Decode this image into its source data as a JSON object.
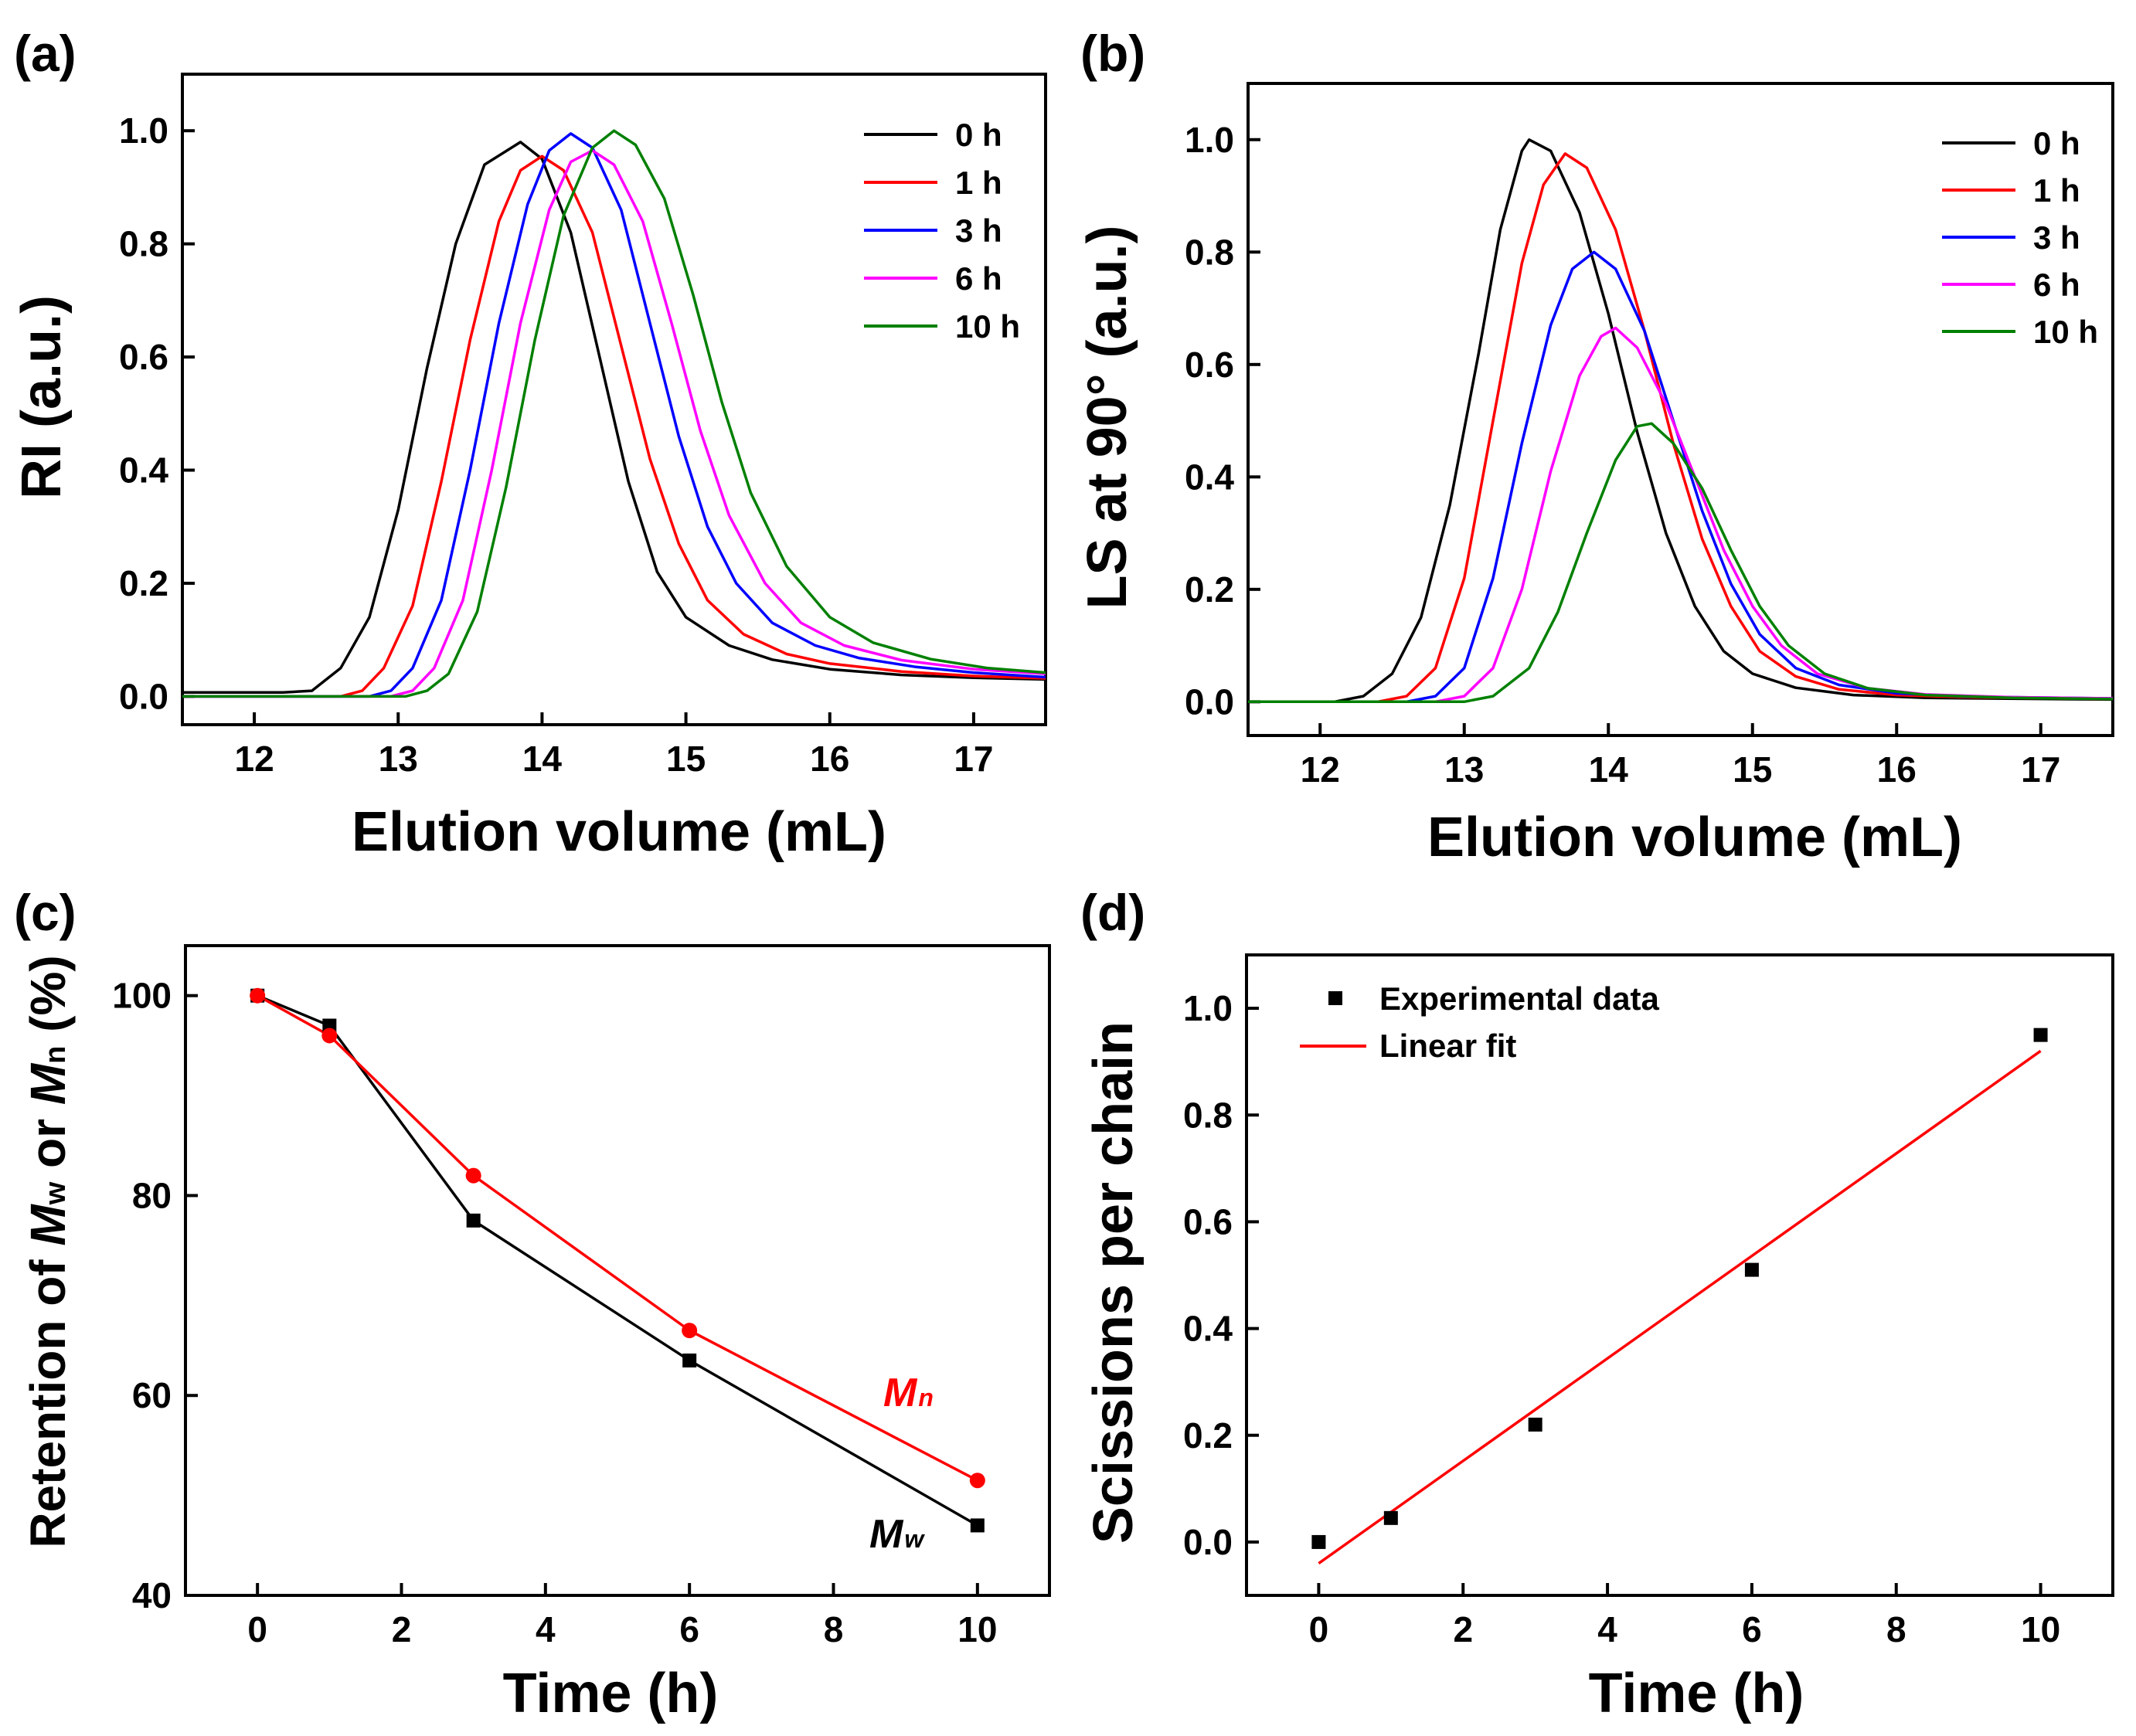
{
  "chart_data": [
    {
      "id": "a",
      "panel_label": "(a)",
      "type": "line",
      "xlabel": "Elution volume (mL)",
      "ylabel": "RI (a.u.)",
      "xlim": [
        11.5,
        17.5
      ],
      "ylim": [
        -0.05,
        1.1
      ],
      "xticks": [
        12,
        13,
        14,
        15,
        16,
        17
      ],
      "yticks": [
        0.0,
        0.2,
        0.4,
        0.6,
        0.8,
        1.0
      ],
      "xtick_labels": [
        "12",
        "13",
        "14",
        "15",
        "16",
        "17"
      ],
      "ytick_labels": [
        "0.0",
        "0.2",
        "0.4",
        "0.6",
        "0.8",
        "1.0"
      ],
      "legend_position": "top-right",
      "series": [
        {
          "name": "0 h",
          "color": "#000000",
          "values": [
            [
              11.5,
              0.007
            ],
            [
              12.2,
              0.007
            ],
            [
              12.4,
              0.01
            ],
            [
              12.6,
              0.05
            ],
            [
              12.8,
              0.14
            ],
            [
              13.0,
              0.33
            ],
            [
              13.2,
              0.58
            ],
            [
              13.4,
              0.8
            ],
            [
              13.6,
              0.94
            ],
            [
              13.85,
              0.98
            ],
            [
              14.0,
              0.95
            ],
            [
              14.2,
              0.82
            ],
            [
              14.4,
              0.6
            ],
            [
              14.6,
              0.38
            ],
            [
              14.8,
              0.22
            ],
            [
              15.0,
              0.14
            ],
            [
              15.3,
              0.09
            ],
            [
              15.6,
              0.065
            ],
            [
              16.0,
              0.048
            ],
            [
              16.5,
              0.038
            ],
            [
              17.0,
              0.033
            ],
            [
              17.5,
              0.03
            ]
          ]
        },
        {
          "name": "1 h",
          "color": "#ff0000",
          "values": [
            [
              11.5,
              0.0
            ],
            [
              12.6,
              0.0
            ],
            [
              12.75,
              0.01
            ],
            [
              12.9,
              0.05
            ],
            [
              13.1,
              0.16
            ],
            [
              13.3,
              0.38
            ],
            [
              13.5,
              0.63
            ],
            [
              13.7,
              0.84
            ],
            [
              13.85,
              0.93
            ],
            [
              14.0,
              0.955
            ],
            [
              14.15,
              0.93
            ],
            [
              14.35,
              0.82
            ],
            [
              14.55,
              0.62
            ],
            [
              14.75,
              0.42
            ],
            [
              14.95,
              0.27
            ],
            [
              15.15,
              0.17
            ],
            [
              15.4,
              0.11
            ],
            [
              15.7,
              0.075
            ],
            [
              16.0,
              0.058
            ],
            [
              16.5,
              0.044
            ],
            [
              17.0,
              0.036
            ],
            [
              17.5,
              0.032
            ]
          ]
        },
        {
          "name": "3 h",
          "color": "#0000ff",
          "values": [
            [
              11.5,
              0.0
            ],
            [
              12.8,
              0.0
            ],
            [
              12.95,
              0.01
            ],
            [
              13.1,
              0.05
            ],
            [
              13.3,
              0.17
            ],
            [
              13.5,
              0.4
            ],
            [
              13.7,
              0.66
            ],
            [
              13.9,
              0.87
            ],
            [
              14.05,
              0.965
            ],
            [
              14.2,
              0.995
            ],
            [
              14.35,
              0.97
            ],
            [
              14.55,
              0.86
            ],
            [
              14.75,
              0.66
            ],
            [
              14.95,
              0.46
            ],
            [
              15.15,
              0.3
            ],
            [
              15.35,
              0.2
            ],
            [
              15.6,
              0.13
            ],
            [
              15.9,
              0.09
            ],
            [
              16.2,
              0.068
            ],
            [
              16.6,
              0.052
            ],
            [
              17.0,
              0.042
            ],
            [
              17.5,
              0.034
            ]
          ]
        },
        {
          "name": "6 h",
          "color": "#ff00ff",
          "values": [
            [
              11.5,
              0.0
            ],
            [
              12.95,
              0.0
            ],
            [
              13.1,
              0.01
            ],
            [
              13.25,
              0.05
            ],
            [
              13.45,
              0.17
            ],
            [
              13.65,
              0.4
            ],
            [
              13.85,
              0.66
            ],
            [
              14.05,
              0.86
            ],
            [
              14.2,
              0.945
            ],
            [
              14.35,
              0.965
            ],
            [
              14.5,
              0.94
            ],
            [
              14.7,
              0.84
            ],
            [
              14.9,
              0.66
            ],
            [
              15.1,
              0.47
            ],
            [
              15.3,
              0.32
            ],
            [
              15.55,
              0.2
            ],
            [
              15.8,
              0.13
            ],
            [
              16.1,
              0.09
            ],
            [
              16.5,
              0.064
            ],
            [
              17.0,
              0.048
            ],
            [
              17.5,
              0.04
            ]
          ]
        },
        {
          "name": "10 h",
          "color": "#008000",
          "values": [
            [
              11.5,
              0.0
            ],
            [
              13.05,
              0.0
            ],
            [
              13.2,
              0.01
            ],
            [
              13.35,
              0.04
            ],
            [
              13.55,
              0.15
            ],
            [
              13.75,
              0.37
            ],
            [
              13.95,
              0.63
            ],
            [
              14.15,
              0.85
            ],
            [
              14.35,
              0.97
            ],
            [
              14.5,
              1.0
            ],
            [
              14.65,
              0.975
            ],
            [
              14.85,
              0.88
            ],
            [
              15.05,
              0.71
            ],
            [
              15.25,
              0.52
            ],
            [
              15.45,
              0.36
            ],
            [
              15.7,
              0.23
            ],
            [
              16.0,
              0.14
            ],
            [
              16.3,
              0.095
            ],
            [
              16.7,
              0.066
            ],
            [
              17.1,
              0.05
            ],
            [
              17.5,
              0.042
            ]
          ]
        }
      ]
    },
    {
      "id": "b",
      "panel_label": "(b)",
      "type": "line",
      "xlabel": "Elution volume (mL)",
      "ylabel": "LS at 90° (a.u.)",
      "xlim": [
        11.5,
        17.5
      ],
      "ylim": [
        -0.06,
        1.1
      ],
      "xticks": [
        12,
        13,
        14,
        15,
        16,
        17
      ],
      "yticks": [
        0.0,
        0.2,
        0.4,
        0.6,
        0.8,
        1.0
      ],
      "xtick_labels": [
        "12",
        "13",
        "14",
        "15",
        "16",
        "17"
      ],
      "ytick_labels": [
        "0.0",
        "0.2",
        "0.4",
        "0.6",
        "0.8",
        "1.0"
      ],
      "legend_position": "top-right",
      "series": [
        {
          "name": "0 h",
          "color": "#000000",
          "values": [
            [
              11.5,
              0.0
            ],
            [
              12.1,
              0.0
            ],
            [
              12.3,
              0.01
            ],
            [
              12.5,
              0.05
            ],
            [
              12.7,
              0.15
            ],
            [
              12.9,
              0.35
            ],
            [
              13.1,
              0.62
            ],
            [
              13.25,
              0.84
            ],
            [
              13.4,
              0.98
            ],
            [
              13.45,
              1.0
            ],
            [
              13.6,
              0.98
            ],
            [
              13.8,
              0.87
            ],
            [
              14.0,
              0.69
            ],
            [
              14.2,
              0.48
            ],
            [
              14.4,
              0.3
            ],
            [
              14.6,
              0.17
            ],
            [
              14.8,
              0.09
            ],
            [
              15.0,
              0.05
            ],
            [
              15.3,
              0.025
            ],
            [
              15.7,
              0.012
            ],
            [
              16.2,
              0.007
            ],
            [
              17.5,
              0.004
            ]
          ]
        },
        {
          "name": "1 h",
          "color": "#ff0000",
          "values": [
            [
              11.5,
              0.0
            ],
            [
              12.4,
              0.0
            ],
            [
              12.6,
              0.01
            ],
            [
              12.8,
              0.06
            ],
            [
              13.0,
              0.22
            ],
            [
              13.2,
              0.5
            ],
            [
              13.4,
              0.78
            ],
            [
              13.55,
              0.92
            ],
            [
              13.7,
              0.975
            ],
            [
              13.85,
              0.95
            ],
            [
              14.05,
              0.84
            ],
            [
              14.25,
              0.66
            ],
            [
              14.45,
              0.46
            ],
            [
              14.65,
              0.29
            ],
            [
              14.85,
              0.17
            ],
            [
              15.05,
              0.09
            ],
            [
              15.3,
              0.045
            ],
            [
              15.6,
              0.022
            ],
            [
              16.0,
              0.012
            ],
            [
              16.5,
              0.008
            ],
            [
              17.5,
              0.005
            ]
          ]
        },
        {
          "name": "3 h",
          "color": "#0000ff",
          "values": [
            [
              11.5,
              0.0
            ],
            [
              12.6,
              0.0
            ],
            [
              12.8,
              0.01
            ],
            [
              13.0,
              0.06
            ],
            [
              13.2,
              0.22
            ],
            [
              13.4,
              0.46
            ],
            [
              13.6,
              0.67
            ],
            [
              13.75,
              0.77
            ],
            [
              13.9,
              0.8
            ],
            [
              14.05,
              0.77
            ],
            [
              14.25,
              0.66
            ],
            [
              14.45,
              0.5
            ],
            [
              14.65,
              0.34
            ],
            [
              14.85,
              0.21
            ],
            [
              15.05,
              0.12
            ],
            [
              15.3,
              0.06
            ],
            [
              15.6,
              0.03
            ],
            [
              16.0,
              0.015
            ],
            [
              16.5,
              0.009
            ],
            [
              17.5,
              0.006
            ]
          ]
        },
        {
          "name": "6 h",
          "color": "#ff00ff",
          "values": [
            [
              11.5,
              0.0
            ],
            [
              12.8,
              0.0
            ],
            [
              13.0,
              0.01
            ],
            [
              13.2,
              0.06
            ],
            [
              13.4,
              0.2
            ],
            [
              13.6,
              0.41
            ],
            [
              13.8,
              0.58
            ],
            [
              13.95,
              0.65
            ],
            [
              14.05,
              0.665
            ],
            [
              14.2,
              0.63
            ],
            [
              14.4,
              0.53
            ],
            [
              14.6,
              0.4
            ],
            [
              14.8,
              0.27
            ],
            [
              15.0,
              0.17
            ],
            [
              15.2,
              0.1
            ],
            [
              15.45,
              0.05
            ],
            [
              15.8,
              0.024
            ],
            [
              16.2,
              0.013
            ],
            [
              16.8,
              0.008
            ],
            [
              17.5,
              0.006
            ]
          ]
        },
        {
          "name": "10 h",
          "color": "#008000",
          "values": [
            [
              11.5,
              0.0
            ],
            [
              13.0,
              0.0
            ],
            [
              13.2,
              0.01
            ],
            [
              13.45,
              0.06
            ],
            [
              13.65,
              0.16
            ],
            [
              13.85,
              0.3
            ],
            [
              14.05,
              0.43
            ],
            [
              14.2,
              0.49
            ],
            [
              14.3,
              0.495
            ],
            [
              14.45,
              0.46
            ],
            [
              14.65,
              0.38
            ],
            [
              14.85,
              0.27
            ],
            [
              15.05,
              0.17
            ],
            [
              15.25,
              0.1
            ],
            [
              15.5,
              0.05
            ],
            [
              15.8,
              0.024
            ],
            [
              16.2,
              0.012
            ],
            [
              16.8,
              0.007
            ],
            [
              17.5,
              0.005
            ]
          ]
        }
      ]
    },
    {
      "id": "c",
      "panel_label": "(c)",
      "type": "line",
      "xlabel": "Time (h)",
      "ylabel_parts": [
        "Retention of ",
        "M",
        "w",
        " or ",
        "M",
        "n",
        " (%)"
      ],
      "xlim": [
        -1,
        11
      ],
      "ylim": [
        40,
        105
      ],
      "xticks": [
        0,
        2,
        4,
        6,
        8,
        10
      ],
      "yticks": [
        40,
        60,
        80,
        100
      ],
      "xtick_labels": [
        "0",
        "2",
        "4",
        "6",
        "8",
        "10"
      ],
      "ytick_labels": [
        "40",
        "60",
        "80",
        "100"
      ],
      "series": [
        {
          "name": "Mw",
          "color": "#000000",
          "marker": "square",
          "x": [
            0,
            1,
            3,
            6,
            10
          ],
          "values": [
            100,
            97,
            77.5,
            63.5,
            47
          ]
        },
        {
          "name": "Mn",
          "color": "#ff0000",
          "marker": "circle",
          "x": [
            0,
            1,
            3,
            6,
            10
          ],
          "values": [
            100,
            96,
            82,
            66.5,
            51.5
          ]
        }
      ],
      "annotations": [
        {
          "main": "M",
          "sub": "n",
          "color": "#ff0000"
        },
        {
          "main": "M",
          "sub": "w",
          "color": "#000000"
        }
      ]
    },
    {
      "id": "d",
      "panel_label": "(d)",
      "type": "scatter",
      "xlabel": "Time (h)",
      "ylabel": "Scissions per chain",
      "xlim": [
        -1,
        11
      ],
      "ylim": [
        -0.1,
        1.1
      ],
      "xticks": [
        0,
        2,
        4,
        6,
        8,
        10
      ],
      "yticks": [
        0.0,
        0.2,
        0.4,
        0.6,
        0.8,
        1.0
      ],
      "xtick_labels": [
        "0",
        "2",
        "4",
        "6",
        "8",
        "10"
      ],
      "ytick_labels": [
        "0.0",
        "0.2",
        "0.4",
        "0.6",
        "0.8",
        "1.0"
      ],
      "legend_position": "top-left",
      "points": {
        "name": "Experimental data",
        "color": "#000000",
        "x": [
          0,
          1,
          3,
          6,
          10
        ],
        "y": [
          0.0,
          0.045,
          0.22,
          0.51,
          0.95
        ]
      },
      "fit": {
        "name": "Linear fit",
        "color": "#ff0000",
        "x": [
          0,
          10
        ],
        "y": [
          -0.04,
          0.92
        ]
      }
    }
  ]
}
